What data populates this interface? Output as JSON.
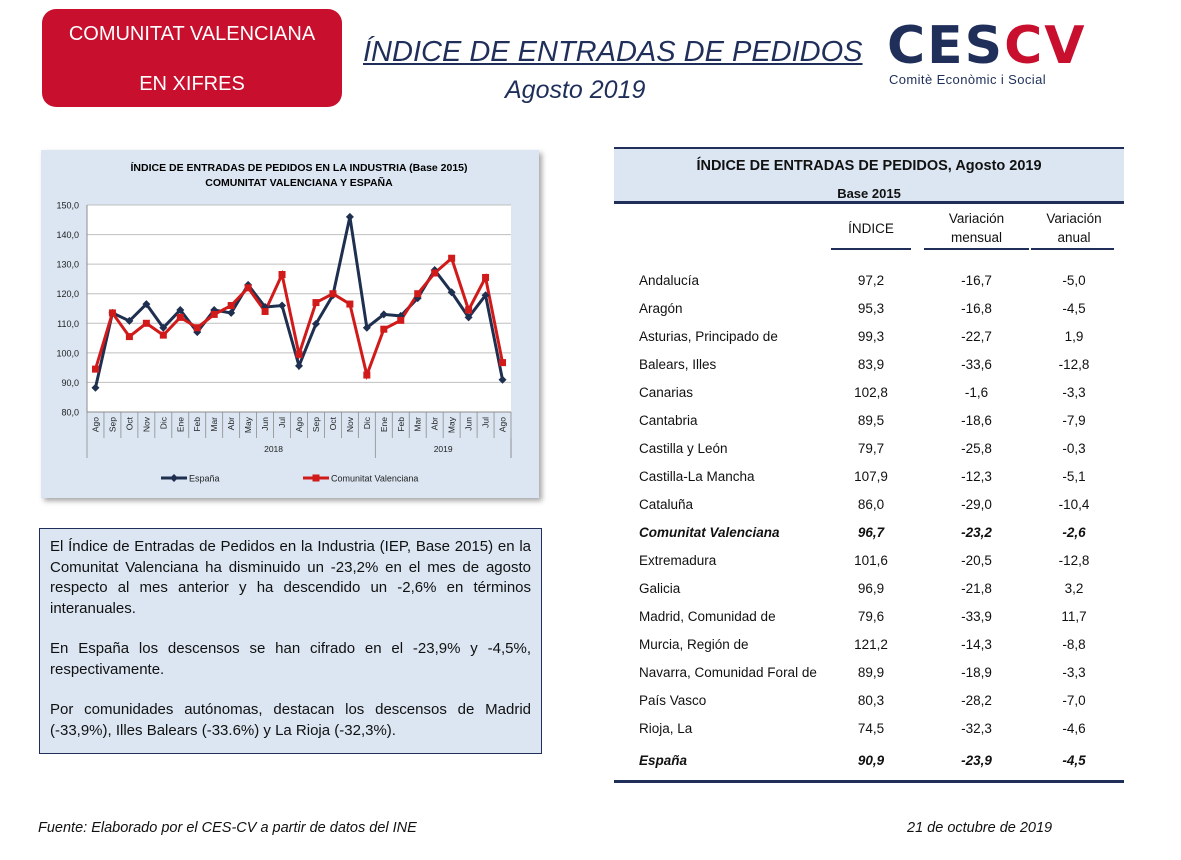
{
  "header": {
    "badge_line1": "COMUNITAT VALENCIANA",
    "badge_line2": "EN XIFRES",
    "title": "ÍNDICE DE ENTRADAS DE PEDIDOS",
    "subtitle": "Agosto 2019",
    "logo_ces": "CES",
    "logo_cv": "CV",
    "logo_sub": "Comitè Econòmic i Social"
  },
  "chart_data": {
    "type": "line",
    "title_line1": "ÍNDICE DE ENTRADAS DE PEDIDOS EN LA INDUSTRIA (Base 2015)",
    "title_line2": "COMUNITAT VALENCIANA Y ESPAÑA",
    "categories": [
      "Ago",
      "Sep",
      "Oct",
      "Nov",
      "Dic",
      "Ene",
      "Feb",
      "Mar",
      "Abr",
      "May",
      "Jun",
      "Jul",
      "Ago",
      "Sep",
      "Oct",
      "Nov",
      "Dic",
      "Ene",
      "Feb",
      "Mar",
      "Abr",
      "May",
      "Jun",
      "Jul",
      "Ago"
    ],
    "year_groups": [
      {
        "label": "2018",
        "start": 5,
        "end": 16
      },
      {
        "label": "2019",
        "start": 17,
        "end": 24
      }
    ],
    "ylim": [
      80,
      150
    ],
    "yticks": [
      "150,0",
      "140,0",
      "130,0",
      "120,0",
      "110,0",
      "100,0",
      "90,0",
      "80,0"
    ],
    "grid": true,
    "legend_position": "bottom",
    "series": [
      {
        "name": "España",
        "color": "#1f2f4f",
        "marker": "diamond",
        "values": [
          88.2,
          113.5,
          110.8,
          116.5,
          108.5,
          114.5,
          107.0,
          114.5,
          113.5,
          123.0,
          115.5,
          116.0,
          95.6,
          109.8,
          119.5,
          146.0,
          108.5,
          113.0,
          112.5,
          118.5,
          128.0,
          120.5,
          112.0,
          119.5,
          90.9
        ]
      },
      {
        "name": "Comunitat Valenciana",
        "color": "#d11a1a",
        "marker": "square",
        "values": [
          94.5,
          113.5,
          105.5,
          110.0,
          106.0,
          112.0,
          108.5,
          113.0,
          116.0,
          122.0,
          114.0,
          126.5,
          99.5,
          117.0,
          120.0,
          116.5,
          92.5,
          108.0,
          111.0,
          120.0,
          127.0,
          132.0,
          114.5,
          125.5,
          96.7
        ]
      }
    ]
  },
  "summary": {
    "p1": "El Índice de Entradas de Pedidos en la Industria (IEP, Base 2015) en la Comunitat Valenciana ha disminuido un -23,2% en el mes de agosto respecto al mes anterior y ha descendido un -2,6% en términos interanuales.",
    "p2": "En España los descensos se han cifrado en el -23,9% y -4,5%, respectivamente.",
    "p3": "Por comunidades autónomas, destacan los descensos de Madrid (-33,9%), Illes Balears (-33.6%) y La Rioja (-32,3%)."
  },
  "table": {
    "title": "ÍNDICE DE ENTRADAS DE PEDIDOS, Agosto 2019",
    "base": "Base 2015",
    "col_indice": "ÍNDICE",
    "col_mensual_1": "Variación",
    "col_mensual_2": "mensual",
    "col_anual_1": "Variación",
    "col_anual_2": "anual",
    "rows": [
      {
        "name": "Andalucía",
        "indice": "97,2",
        "mensual": "-16,7",
        "anual": "-5,0"
      },
      {
        "name": "Aragón",
        "indice": "95,3",
        "mensual": "-16,8",
        "anual": "-4,5"
      },
      {
        "name": "Asturias, Principado de",
        "indice": "99,3",
        "mensual": "-22,7",
        "anual": "1,9"
      },
      {
        "name": "Balears, Illes",
        "indice": "83,9",
        "mensual": "-33,6",
        "anual": "-12,8"
      },
      {
        "name": "Canarias",
        "indice": "102,8",
        "mensual": "-1,6",
        "anual": "-3,3"
      },
      {
        "name": "Cantabria",
        "indice": "89,5",
        "mensual": "-18,6",
        "anual": "-7,9"
      },
      {
        "name": "Castilla y León",
        "indice": "79,7",
        "mensual": "-25,8",
        "anual": "-0,3"
      },
      {
        "name": "Castilla-La Mancha",
        "indice": "107,9",
        "mensual": "-12,3",
        "anual": "-5,1"
      },
      {
        "name": "Cataluña",
        "indice": "86,0",
        "mensual": "-29,0",
        "anual": "-10,4"
      },
      {
        "name": "Comunitat Valenciana",
        "indice": "96,7",
        "mensual": "-23,2",
        "anual": "-2,6",
        "highlight": true
      },
      {
        "name": "Extremadura",
        "indice": "101,6",
        "mensual": "-20,5",
        "anual": "-12,8"
      },
      {
        "name": "Galicia",
        "indice": "96,9",
        "mensual": "-21,8",
        "anual": "3,2"
      },
      {
        "name": "Madrid, Comunidad de",
        "indice": "79,6",
        "mensual": "-33,9",
        "anual": "11,7"
      },
      {
        "name": "Murcia, Región de",
        "indice": "121,2",
        "mensual": "-14,3",
        "anual": "-8,8"
      },
      {
        "name": "Navarra, Comunidad Foral de",
        "indice": "89,9",
        "mensual": "-18,9",
        "anual": "-3,3"
      },
      {
        "name": "País Vasco",
        "indice": "80,3",
        "mensual": "-28,2",
        "anual": "-7,0"
      },
      {
        "name": "Rioja, La",
        "indice": "74,5",
        "mensual": "-32,3",
        "anual": "-4,6"
      },
      {
        "name": "España",
        "indice": "90,9",
        "mensual": "-23,9",
        "anual": "-4,5",
        "highlight": true
      }
    ]
  },
  "footer": {
    "source": "Fuente: Elaborado por el CES-CV a partir de datos del INE",
    "date": "21 de octubre de 2019"
  }
}
